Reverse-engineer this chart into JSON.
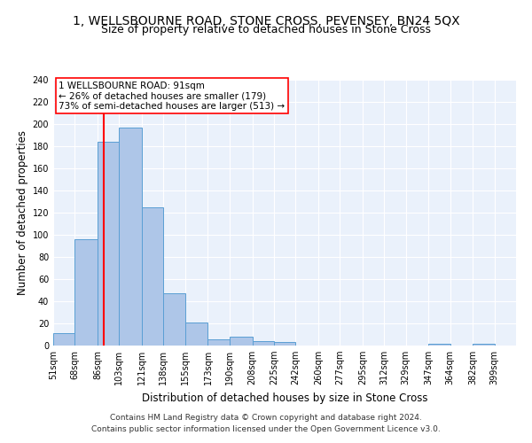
{
  "title": "1, WELLSBOURNE ROAD, STONE CROSS, PEVENSEY, BN24 5QX",
  "subtitle": "Size of property relative to detached houses in Stone Cross",
  "xlabel": "Distribution of detached houses by size in Stone Cross",
  "ylabel": "Number of detached properties",
  "footnote1": "Contains HM Land Registry data © Crown copyright and database right 2024.",
  "footnote2": "Contains public sector information licensed under the Open Government Licence v3.0.",
  "bin_labels": [
    "51sqm",
    "68sqm",
    "86sqm",
    "103sqm",
    "121sqm",
    "138sqm",
    "155sqm",
    "173sqm",
    "190sqm",
    "208sqm",
    "225sqm",
    "242sqm",
    "260sqm",
    "277sqm",
    "295sqm",
    "312sqm",
    "329sqm",
    "347sqm",
    "364sqm",
    "382sqm",
    "399sqm"
  ],
  "bar_values": [
    11,
    96,
    184,
    197,
    125,
    47,
    21,
    6,
    8,
    4,
    3,
    0,
    0,
    0,
    0,
    0,
    0,
    2,
    0,
    2,
    0
  ],
  "bar_color": "#aec6e8",
  "bar_edge_color": "#5a9fd4",
  "vline_x": 91,
  "vline_color": "red",
  "annotation_box_text": "1 WELLSBOURNE ROAD: 91sqm\n← 26% of detached houses are smaller (179)\n73% of semi-detached houses are larger (513) →",
  "ylim": [
    0,
    240
  ],
  "yticks": [
    0,
    20,
    40,
    60,
    80,
    100,
    120,
    140,
    160,
    180,
    200,
    220,
    240
  ],
  "bin_edges": [
    51,
    68,
    86,
    103,
    121,
    138,
    155,
    173,
    190,
    208,
    225,
    242,
    260,
    277,
    295,
    312,
    329,
    347,
    364,
    382,
    399,
    416
  ],
  "bg_color": "#eaf1fb",
  "grid_color": "#ffffff",
  "title_fontsize": 10,
  "subtitle_fontsize": 9,
  "axis_label_fontsize": 8.5,
  "tick_fontsize": 7,
  "footnote_fontsize": 6.5
}
